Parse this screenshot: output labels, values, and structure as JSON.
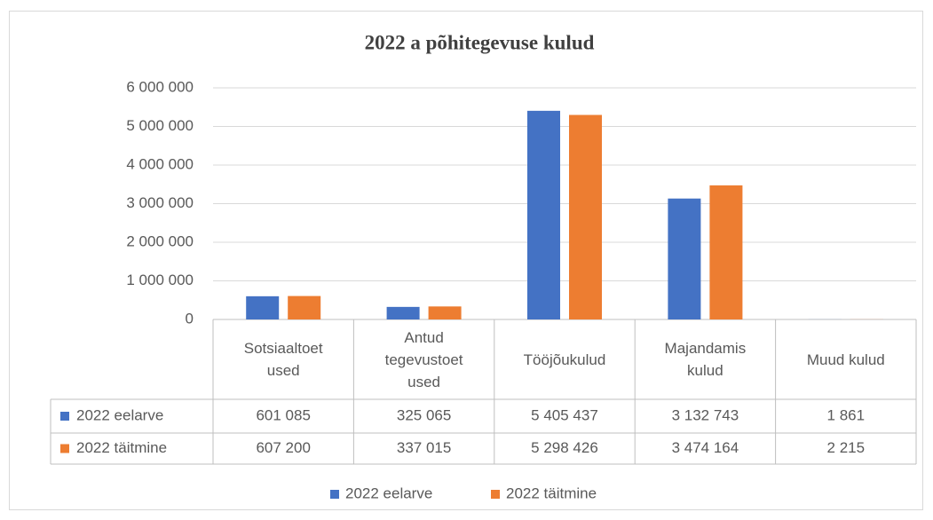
{
  "chart_data": {
    "type": "bar",
    "title": "2022 a põhitegevuse kulud",
    "categories": [
      "Sotsiaaltoet\nused",
      "Antud\ntegevustoet\nused",
      "Tööjõukulud",
      "Majandamis\nkulud",
      "Muud kulud"
    ],
    "series": [
      {
        "name": "2022 eelarve",
        "color": "#4472c4",
        "values": [
          601085,
          325065,
          5405437,
          3132743,
          1861
        ],
        "value_labels": [
          "601 085",
          "325 065",
          "5 405 437",
          "3 132 743",
          "1 861"
        ]
      },
      {
        "name": "2022 täitmine",
        "color": "#ed7d31",
        "values": [
          607200,
          337015,
          5298426,
          3474164,
          2215
        ],
        "value_labels": [
          "607 200",
          "337 015",
          "5 298 426",
          "3 474 164",
          "2 215"
        ]
      }
    ],
    "ylim": [
      0,
      6000000
    ],
    "yticks": [
      0,
      {
        "value": 1000000,
        "label": "1 000 000"
      },
      {
        "value": 2000000,
        "label": "2 000 000"
      },
      {
        "value": 3000000,
        "label": "3 000 000"
      },
      {
        "value": 4000000,
        "label": "4 000 000"
      },
      {
        "value": 5000000,
        "label": "5 000 000"
      },
      {
        "value": 6000000,
        "label": "6 000 000"
      }
    ],
    "grid": true,
    "legend": "bottom"
  }
}
